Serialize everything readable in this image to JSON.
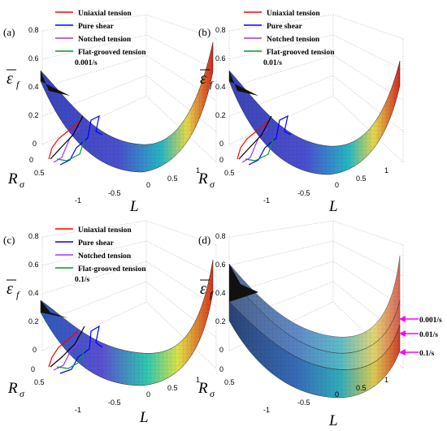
{
  "chart_data": [
    {
      "panel": "(a)",
      "type": "surface",
      "rate_label": "0.001/s",
      "legend": [
        "Uniaxial tension",
        "Pure shear",
        "Notched tension",
        "Flat-grooved tension"
      ],
      "legend_colors": [
        "#ff0000",
        "#0000ff",
        "#9933ff",
        "#009933"
      ],
      "zlim": [
        0,
        0.8
      ],
      "z_ticks": [
        "0",
        "0.2",
        "0.4",
        "0.6",
        "0.8"
      ],
      "x_ticks": [
        "-1",
        "-0.5",
        "0",
        "0.5",
        "1"
      ],
      "r_ticks": [
        "0",
        "0.5"
      ],
      "z_surface_at_L": {
        "L": [
          -1,
          -0.5,
          0,
          0.5,
          1
        ],
        "eps_Rsigma0": [
          0.58,
          0.33,
          0.22,
          0.31,
          0.78
        ]
      },
      "xlabel": "L",
      "ylabel_rsigma": "R",
      "ylabel_rsigma_sub": "σ"
    },
    {
      "panel": "(b)",
      "type": "surface",
      "rate_label": "0.01/s",
      "legend": [
        "Uniaxial tension",
        "Pure shear",
        "Notched tension",
        "Flat-grooved tension"
      ],
      "legend_colors": [
        "#ff0000",
        "#0000ff",
        "#9933ff",
        "#009933"
      ],
      "zlim": [
        0,
        0.8
      ],
      "z_ticks": [
        "0",
        "0.2",
        "0.4",
        "0.6",
        "0.8"
      ],
      "x_ticks": [
        "-1",
        "-0.5",
        "0",
        "0.5",
        "1"
      ],
      "r_ticks": [
        "0",
        "0.5"
      ],
      "z_surface_at_L": {
        "L": [
          -1,
          -0.5,
          0,
          0.5,
          1
        ],
        "eps_Rsigma0": [
          0.55,
          0.31,
          0.2,
          0.29,
          0.66
        ]
      },
      "xlabel": "L",
      "ylabel_rsigma": "R",
      "ylabel_rsigma_sub": "σ"
    },
    {
      "panel": "(c)",
      "type": "surface",
      "rate_label": "0.1/s",
      "legend": [
        "Uniaxial tension",
        "Pure shear",
        "Notched tension",
        "Flat-grooved tension"
      ],
      "legend_colors": [
        "#ff0000",
        "#0000ff",
        "#9933ff",
        "#009933"
      ],
      "zlim": [
        0,
        0.8
      ],
      "z_ticks": [
        "0",
        "0.2",
        "0.4",
        "0.6",
        "0.8"
      ],
      "x_ticks": [
        "-1",
        "-0.5",
        "0",
        "0.5",
        "1"
      ],
      "r_ticks": [
        "0",
        "0.5"
      ],
      "z_surface_at_L": {
        "L": [
          -1,
          -0.5,
          0,
          0.5,
          1
        ],
        "eps_Rsigma0": [
          0.34,
          0.2,
          0.15,
          0.22,
          0.56
        ]
      },
      "xlabel": "L",
      "ylabel_rsigma": "R",
      "ylabel_rsigma_sub": "σ"
    },
    {
      "panel": "(d)",
      "type": "surface",
      "rate_labels": [
        "0.001/s",
        "0.01/s",
        "0.1/s"
      ],
      "arrow_color": "#ff00ff",
      "zlim": [
        0,
        0.8
      ],
      "z_ticks": [
        "0",
        "0.2",
        "0.4",
        "0.6",
        "0.8"
      ],
      "x_ticks": [
        "-1",
        "-0.5",
        "0",
        "0.5",
        "1"
      ],
      "r_ticks": [
        "0",
        "0.5"
      ],
      "xlabel": "L",
      "ylabel_rsigma": "R",
      "ylabel_rsigma_sub": "σ"
    }
  ],
  "colors": {
    "surface_low": "#3d3dd6",
    "surface_mid": "#22c0c0",
    "surface_high_yellow": "#e8e050",
    "surface_high_red": "#d03020"
  }
}
